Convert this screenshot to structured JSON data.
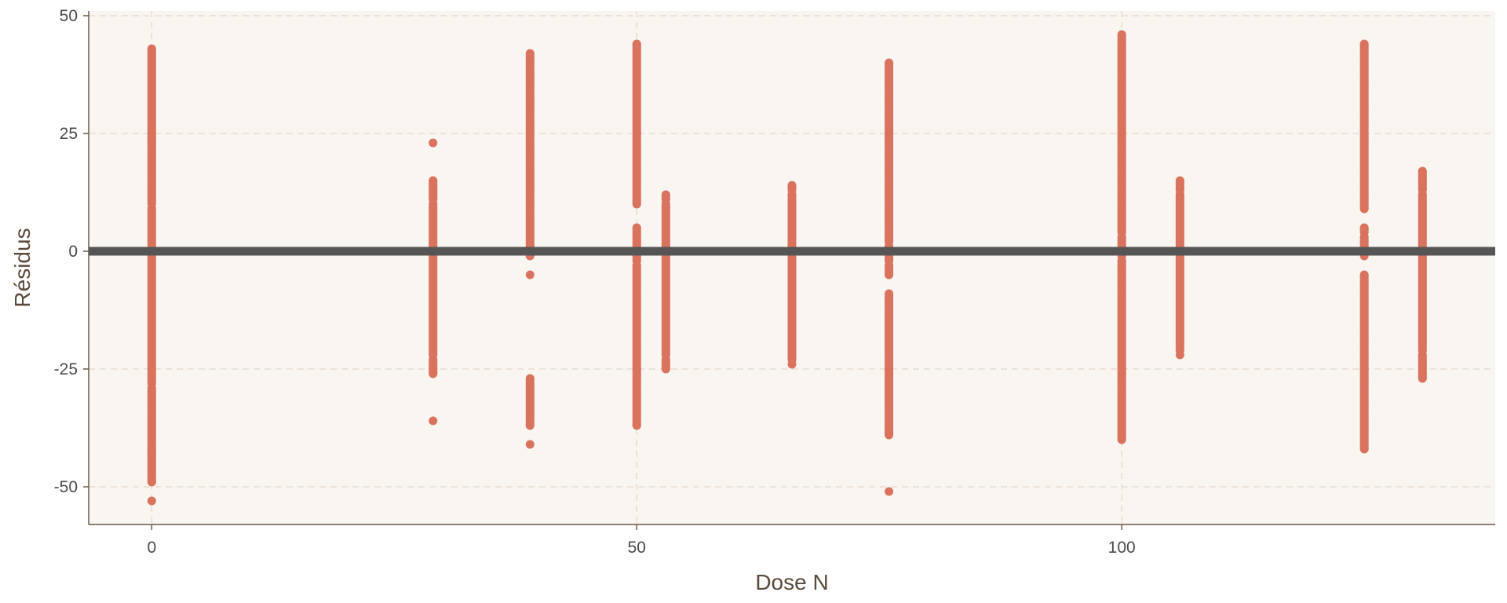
{
  "chart_data": {
    "type": "scatter",
    "title": "",
    "xlabel": "Dose N",
    "ylabel": "Résidus",
    "xlim": [
      -6.5,
      138.5
    ],
    "ylim": [
      -58,
      51
    ],
    "x_ticks": [
      0,
      50,
      100
    ],
    "y_ticks": [
      50,
      25,
      0,
      -25,
      -50
    ],
    "x_tick_labels": [
      "0",
      "50",
      "100"
    ],
    "y_tick_labels": [
      "50",
      "25",
      "0",
      "-25",
      "-50"
    ],
    "grid": true,
    "reference_line": {
      "y": 0,
      "color": "#555555"
    },
    "colors": {
      "points": "#d9735e",
      "panel_background": "#f9f5f1",
      "grid": "#e6d8c8",
      "axis": "#6b5a48"
    },
    "series": [
      {
        "x_groups": [
          {
            "x": 0,
            "min": -53,
            "max": 43,
            "outliers": [
              -53,
              -49,
              -46,
              -45,
              -43,
              -42,
              -39,
              -37,
              -35,
              -33,
              -31,
              -29,
              10,
              12,
              14,
              16,
              19,
              21,
              23,
              24,
              26,
              28,
              30,
              32,
              34,
              36,
              38,
              39,
              40,
              42,
              43
            ]
          },
          {
            "x": 29,
            "min": -36,
            "max": 23,
            "outliers": [
              -36,
              -26,
              -25,
              -23,
              11,
              12,
              13,
              15,
              23
            ]
          },
          {
            "x": 39,
            "min": -41,
            "max": 42,
            "outliers": [
              -41,
              -37,
              -34,
              -33,
              -31,
              -29,
              -27,
              -5,
              -1,
              1,
              3,
              5,
              7,
              10,
              13,
              15,
              17,
              20,
              22,
              25,
              27,
              30,
              32,
              35,
              37,
              40,
              42
            ]
          },
          {
            "x": 50,
            "min": -37,
            "max": 44,
            "outliers": [
              -37,
              -34,
              -32,
              -30,
              -27,
              -25,
              -22,
              -20,
              -17,
              -15,
              -12,
              -10,
              -7,
              -5,
              -3,
              1,
              3,
              5,
              10,
              12,
              15,
              17,
              20,
              22,
              25,
              28,
              30,
              33,
              35,
              38,
              40,
              42,
              44
            ]
          },
          {
            "x": 53,
            "min": -25,
            "max": 12,
            "outliers": [
              -25,
              -23,
              11,
              12
            ]
          },
          {
            "x": 66,
            "min": -24,
            "max": 14,
            "outliers": [
              -24,
              13,
              14
            ]
          },
          {
            "x": 76,
            "min": -51,
            "max": 40,
            "outliers": [
              -51,
              -39,
              -37,
              -35,
              -33,
              -31,
              -29,
              -27,
              -25,
              -23,
              -21,
              -19,
              -17,
              -15,
              -13,
              -11,
              -9,
              -5,
              -3,
              2,
              4,
              6,
              9,
              12,
              14,
              17,
              20,
              23,
              26,
              29,
              32,
              35,
              38,
              40
            ]
          },
          {
            "x": 100,
            "min": -40,
            "max": 46,
            "outliers": [
              -40,
              -38,
              -36,
              -34,
              -32,
              -30,
              -28,
              -26,
              -24,
              -22,
              -20,
              -18,
              -16,
              -14,
              -12,
              -10,
              -7,
              -4,
              -2,
              4,
              6,
              9,
              12,
              15,
              18,
              21,
              24,
              27,
              30,
              33,
              36,
              39,
              41,
              43,
              46
            ]
          },
          {
            "x": 106,
            "min": -22,
            "max": 15,
            "outliers": [
              -22,
              13,
              15
            ]
          },
          {
            "x": 125,
            "min": -42,
            "max": 44,
            "outliers": [
              -42,
              -40,
              -38,
              -36,
              -34,
              -32,
              -30,
              -28,
              -25,
              -22,
              -19,
              -16,
              -13,
              -10,
              -7,
              -5,
              -1,
              4,
              5,
              9,
              12,
              15,
              18,
              21,
              24,
              27,
              30,
              33,
              36,
              39,
              42,
              44
            ]
          },
          {
            "x": 131,
            "min": -27,
            "max": 17,
            "outliers": [
              -27,
              -25,
              -22,
              13,
              15,
              17
            ]
          }
        ]
      }
    ]
  }
}
